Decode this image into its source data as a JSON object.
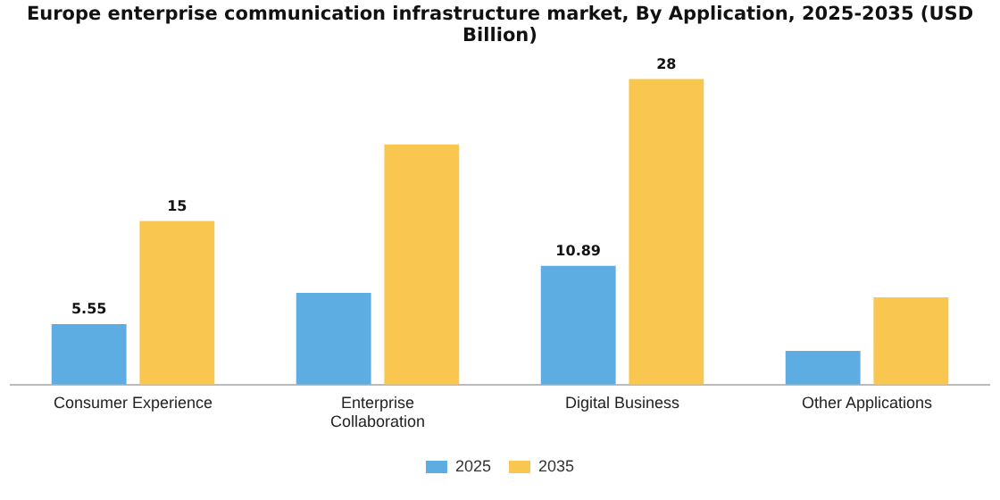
{
  "chart_data": {
    "type": "bar",
    "title": "Europe enterprise communication infrastructure market, By Application, 2025-2035 (USD Billion)",
    "categories": [
      "Consumer Experience",
      "Enterprise Collaboration",
      "Digital Business",
      "Other Applications"
    ],
    "series": [
      {
        "name": "2025",
        "color": "#5dade2",
        "values": [
          5.55,
          8.4,
          10.89,
          3.1
        ],
        "value_labels": [
          "5.55",
          null,
          "10.89",
          null
        ]
      },
      {
        "name": "2035",
        "color": "#f9c74f",
        "values": [
          15,
          22,
          28,
          8
        ],
        "value_labels": [
          "15",
          null,
          "28",
          null
        ]
      }
    ],
    "legend": "bottom",
    "grid": false
  }
}
